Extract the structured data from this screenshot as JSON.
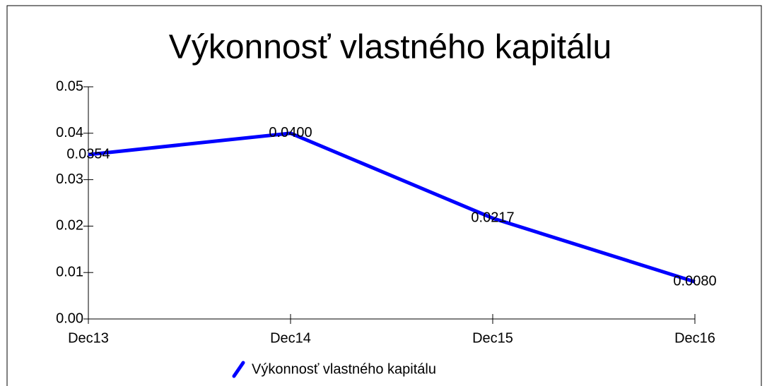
{
  "chart_data": {
    "type": "line",
    "title": "Výkonnosť vlastného kapitálu",
    "categories": [
      "Dec13",
      "Dec14",
      "Dec15",
      "Dec16"
    ],
    "series": [
      {
        "name": "Výkonnosť vlastného kapitálu",
        "color": "#0000ff",
        "values": [
          0.0354,
          0.04,
          0.0217,
          0.008
        ],
        "value_labels": [
          "0.0354",
          "0.0400",
          "0.0217",
          "0.0080"
        ]
      }
    ],
    "ylim": [
      0,
      0.05
    ],
    "yticks": [
      {
        "value": 0,
        "label": "0.00"
      },
      0.01,
      0.02,
      0.03,
      0.04,
      0.05
    ]
  }
}
